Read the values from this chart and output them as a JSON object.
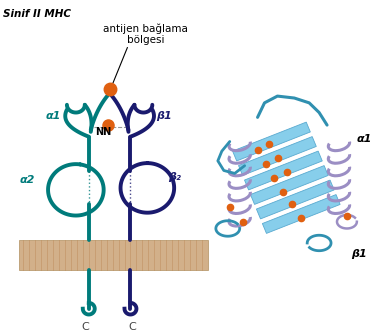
{
  "title": "Sinif II MHC",
  "label_antijen": "antijen bağlama",
  "label_bolgesi": "bölgesi",
  "label_alpha1_left": "α1",
  "label_alpha2": "α2",
  "label_beta1_left": "β1",
  "label_beta2": "β₂",
  "label_NN": "NN",
  "label_C1": "C",
  "label_C2": "C",
  "label_alpha1_right": "α1",
  "label_beta1_right": "β1",
  "teal": "#007B7B",
  "navy": "#1a1a6e",
  "orange": "#E06010",
  "mem_fill": "#D2B08A",
  "mem_stripe": "#C09868",
  "light_blue": "#87CEEB",
  "lavender": "#9B8EC4",
  "bg": "#ffffff"
}
